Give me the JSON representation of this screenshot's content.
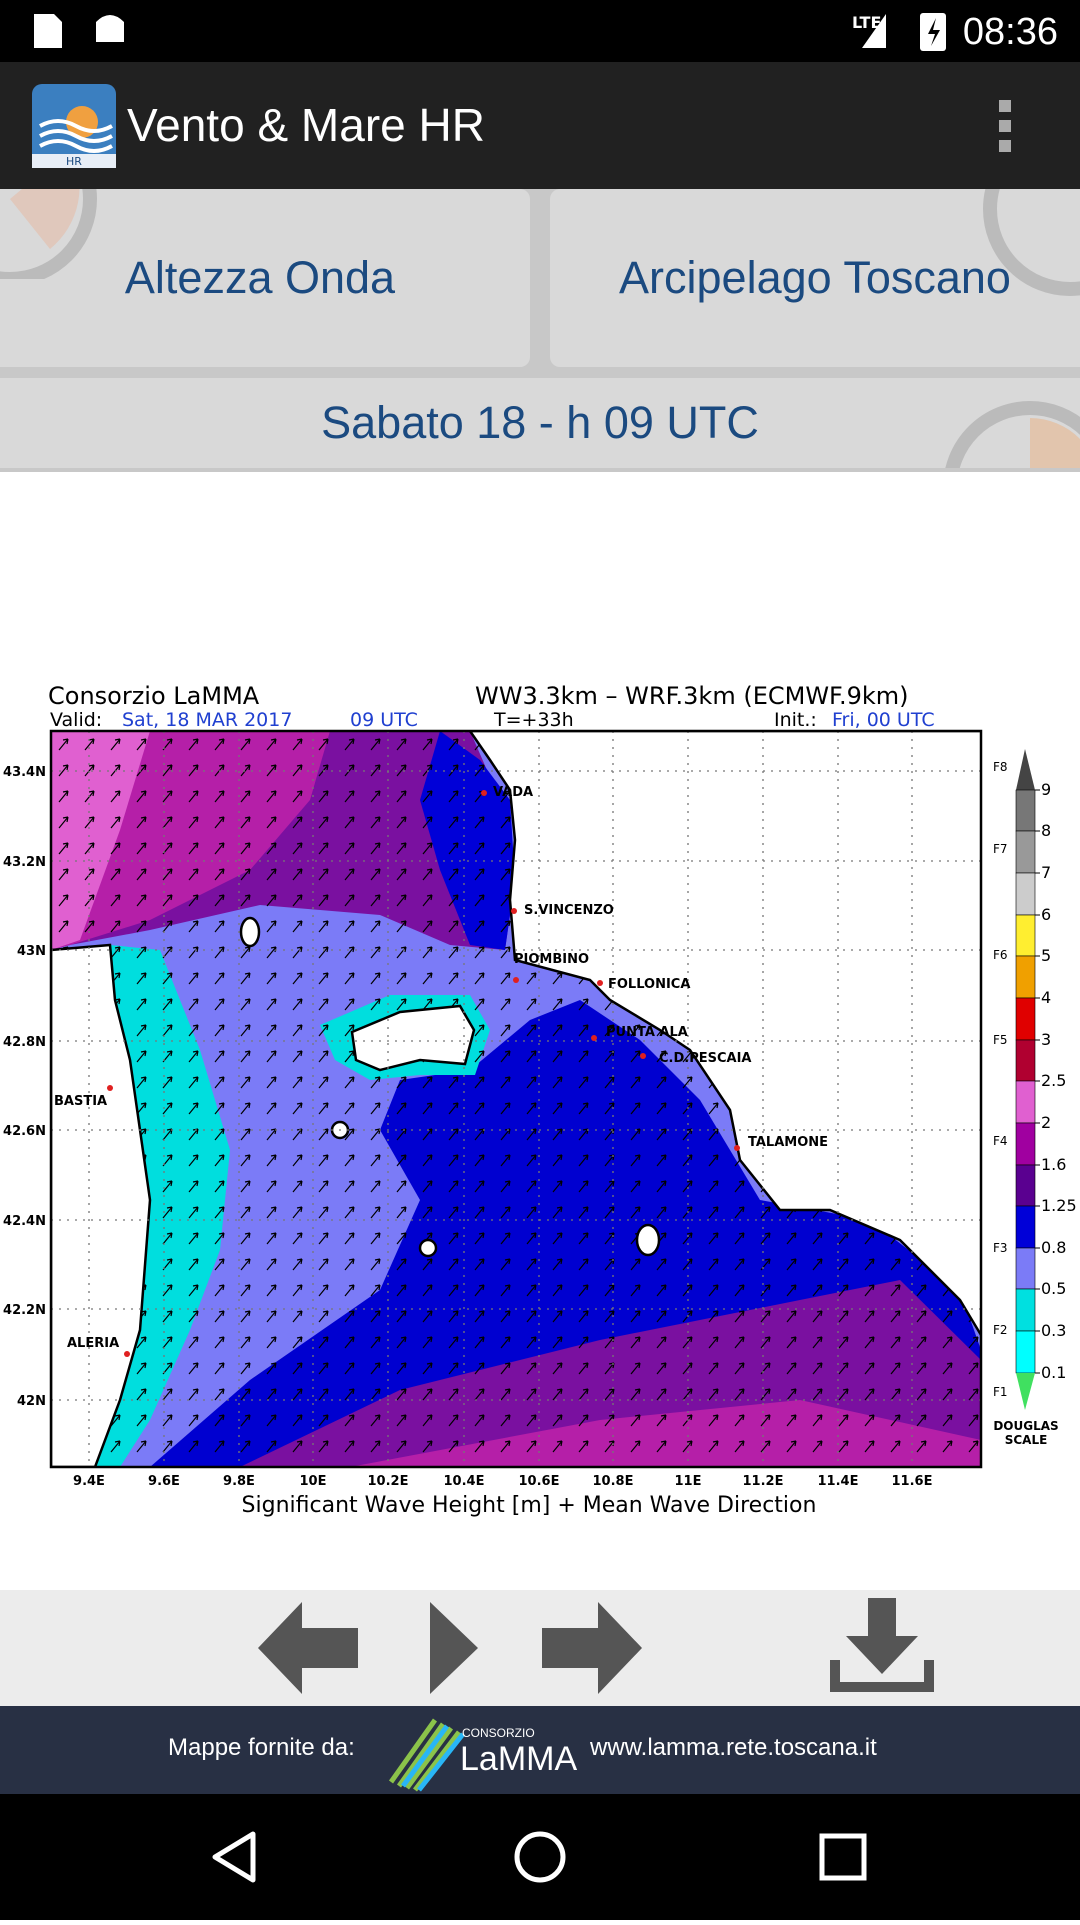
{
  "status_bar": {
    "network": "LTE",
    "time": "08:36"
  },
  "app_bar": {
    "title": "Vento & Mare HR",
    "icon_label": "HR"
  },
  "selectors": {
    "variable": "Altezza Onda",
    "area": "Arcipelago Toscano",
    "time": "Sabato 18 - h 09 UTC"
  },
  "map": {
    "title": "Consorzio LaMMA",
    "model": "WW3.3km – WRF.3km (ECMWF.9km)",
    "valid_label": "Valid:",
    "valid_date": "Sat, 18 MAR 2017",
    "valid_hour": "09 UTC",
    "lead_time": "T=+33h",
    "init_label": "Init.:",
    "init_time": "Fri, 00 UTC",
    "lat_ticks": [
      "43.4N",
      "43.2N",
      "43N",
      "42.8N",
      "42.6N",
      "42.4N",
      "42.2N",
      "42N"
    ],
    "lon_ticks": [
      "9.4E",
      "9.6E",
      "9.8E",
      "10E",
      "10.2E",
      "10.4E",
      "10.6E",
      "10.8E",
      "11E",
      "11.2E",
      "11.4E",
      "11.6E"
    ],
    "places": [
      "VADA",
      "S.VINCENZO",
      "PIOMBINO",
      "FOLLONICA",
      "PUNTA ALA",
      "C.D.PESCAIA",
      "TALAMONE",
      "BASTIA",
      "ALERIA"
    ],
    "caption": "Significant Wave Height [m] + Mean Wave Direction",
    "legend": {
      "values": [
        "9",
        "8",
        "7",
        "6",
        "5",
        "4",
        "3",
        "2.5",
        "2",
        "1.6",
        "1.25",
        "0.8",
        "0.5",
        "0.3",
        "0.1"
      ],
      "douglas": [
        "F8",
        "F7",
        "F6",
        "F5",
        "F4",
        "F3",
        "F2",
        "F1"
      ],
      "scale_title": [
        "DOUGLAS",
        "SCALE"
      ]
    }
  },
  "footer": {
    "credit": "Mappe fornite da:",
    "logo_top": "CONSORZIO",
    "logo_name": "LaMMA",
    "url": "www.lamma.rete.toscana.it"
  }
}
